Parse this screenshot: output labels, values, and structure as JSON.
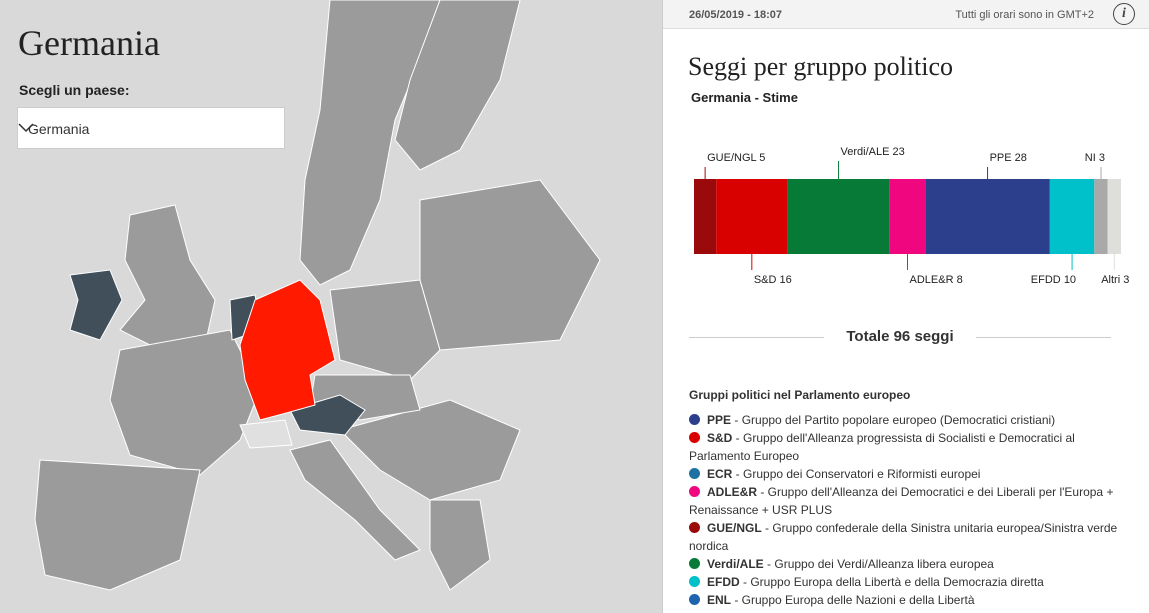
{
  "map": {
    "title": "Germania",
    "select_label": "Scegli un paese:",
    "select_value": "Germania"
  },
  "topbar": {
    "timestamp": "26/05/2019 - 18:07",
    "timezone_note": "Tutti gli orari sono in GMT+2",
    "info_icon": "i"
  },
  "chart_data": {
    "type": "stacked-bar",
    "title": "Seggi per gruppo politico",
    "subtitle": "Germania - Stime",
    "series": [
      {
        "name": "GUE/NGL",
        "color": "#9b0a0a",
        "values": [
          5
        ]
      },
      {
        "name": "S&D",
        "color": "#d90000",
        "values": [
          16
        ]
      },
      {
        "name": "Verdi/ALE",
        "color": "#067a36",
        "values": [
          23
        ]
      },
      {
        "name": "ADLE&R",
        "color": "#f0067f",
        "values": [
          8
        ]
      },
      {
        "name": "PPE",
        "color": "#2b3f8c",
        "values": [
          28
        ]
      },
      {
        "name": "EFDD",
        "color": "#00c1c9",
        "values": [
          10
        ]
      },
      {
        "name": "NI",
        "color": "#a9a9a9",
        "values": [
          3
        ]
      },
      {
        "name": "Altri",
        "color": "#dededa",
        "values": [
          3
        ]
      }
    ]
  },
  "total_label": "Totale 96 seggi",
  "legend": {
    "title": "Gruppi politici nel Parlamento europeo",
    "items": [
      {
        "abbr": "PPE",
        "desc": "Gruppo del Partito popolare europeo (Democratici cristiani)",
        "color": "#2b3f8c"
      },
      {
        "abbr": "S&D",
        "desc": "Gruppo dell'Alleanza progressista di Socialisti e Democratici al Parlamento Europeo",
        "color": "#d90000"
      },
      {
        "abbr": "ECR",
        "desc": "Gruppo dei Conservatori e Riformisti europei",
        "color": "#1d72a3"
      },
      {
        "abbr": "ADLE&R",
        "desc": "Gruppo dell'Alleanza dei Democratici e dei Liberali per l'Europa + Renaissance + USR PLUS",
        "color": "#f0067f"
      },
      {
        "abbr": "GUE/NGL",
        "desc": "Gruppo confederale della Sinistra unitaria europea/Sinistra verde nordica",
        "color": "#9b0a0a"
      },
      {
        "abbr": "Verdi/ALE",
        "desc": "Gruppo dei Verdi/Alleanza libera europea",
        "color": "#067a36"
      },
      {
        "abbr": "EFDD",
        "desc": "Gruppo Europa della Libertà e della Democrazia diretta",
        "color": "#00c1c9"
      },
      {
        "abbr": "ENL",
        "desc": "Gruppo Europa delle Nazioni e della Libertà",
        "color": "#1e63b0"
      }
    ]
  }
}
